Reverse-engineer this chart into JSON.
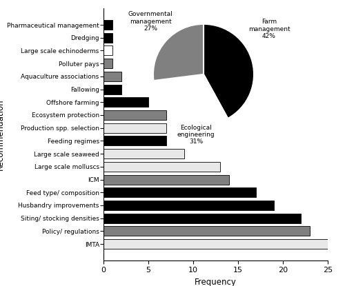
{
  "categories": [
    "IMTA",
    "Policy/ regulations",
    "Siting/ stocking densities",
    "Husbandry improvements",
    "Feed type/ composition",
    "ICM",
    "Large scale molluscs",
    "Large scale seaweed",
    "Feeding regimes",
    "Production spp. selection",
    "Ecosystem protection",
    "Offshore farming",
    "Fallowing",
    "Aquaculture associations",
    "Polluter pays",
    "Large scale echinoderms",
    "Dredging",
    "Pharmaceutical management"
  ],
  "values": [
    25,
    23,
    22,
    19,
    17,
    14,
    13,
    9,
    7,
    7,
    7,
    5,
    2,
    2,
    1,
    1,
    1,
    1
  ],
  "colors": [
    "#e8e8e8",
    "#808080",
    "#000000",
    "#000000",
    "#000000",
    "#808080",
    "#e8e8e8",
    "#e8e8e8",
    "#000000",
    "#e8e8e8",
    "#808080",
    "#000000",
    "#000000",
    "#808080",
    "#808080",
    "#ffffff",
    "#000000",
    "#000000"
  ],
  "bar_edge_color": "#000000",
  "xlim": [
    0,
    25
  ],
  "xlabel": "Frequency",
  "ylabel": "Recommendation",
  "pie_values": [
    42,
    31,
    27
  ],
  "pie_labels": [
    "Farm\nmanagement\n42%",
    "Ecological\nengineering\n31%",
    "Governmental\nmanagement\n27%"
  ],
  "pie_colors": [
    "#000000",
    "#ffffff",
    "#808080"
  ],
  "pie_startangle": 90,
  "figsize": [
    5.0,
    4.15
  ],
  "dpi": 100
}
